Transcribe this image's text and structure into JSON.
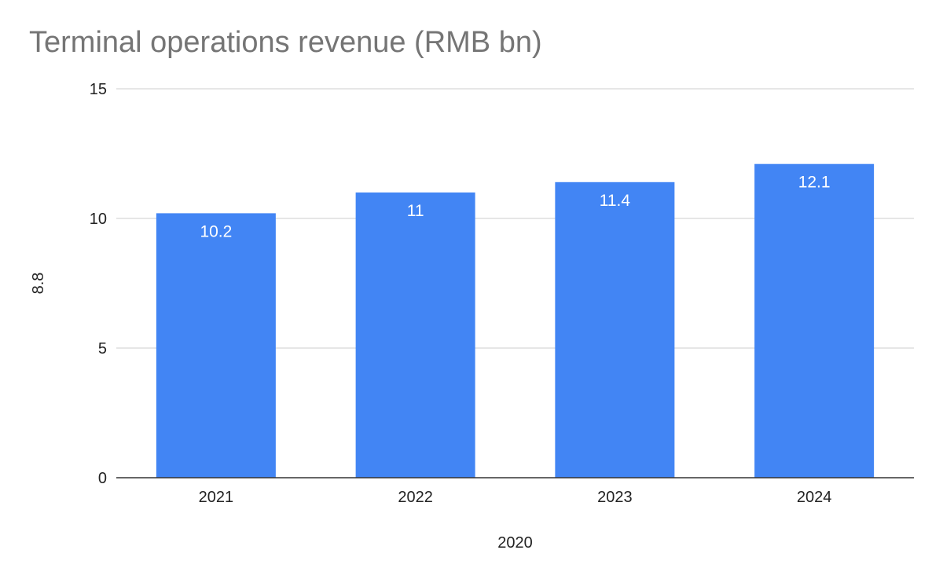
{
  "chart_data": {
    "type": "bar",
    "title": "Terminal operations revenue (RMB bn)",
    "xlabel": "2020",
    "ylabel": "8.8",
    "categories": [
      "2021",
      "2022",
      "2023",
      "2024"
    ],
    "values": [
      10.2,
      11,
      11.4,
      12.1
    ],
    "data_labels": [
      "10.2",
      "11",
      "11.4",
      "12.1"
    ],
    "y_ticks": [
      0,
      5,
      10,
      15
    ],
    "ylim": [
      0,
      15
    ],
    "grid": true,
    "legend": "none",
    "colors": {
      "bar": "#4285f4",
      "grid": "#cccccc",
      "baseline": "#333333",
      "title": "#757575",
      "text": "#222222"
    }
  }
}
